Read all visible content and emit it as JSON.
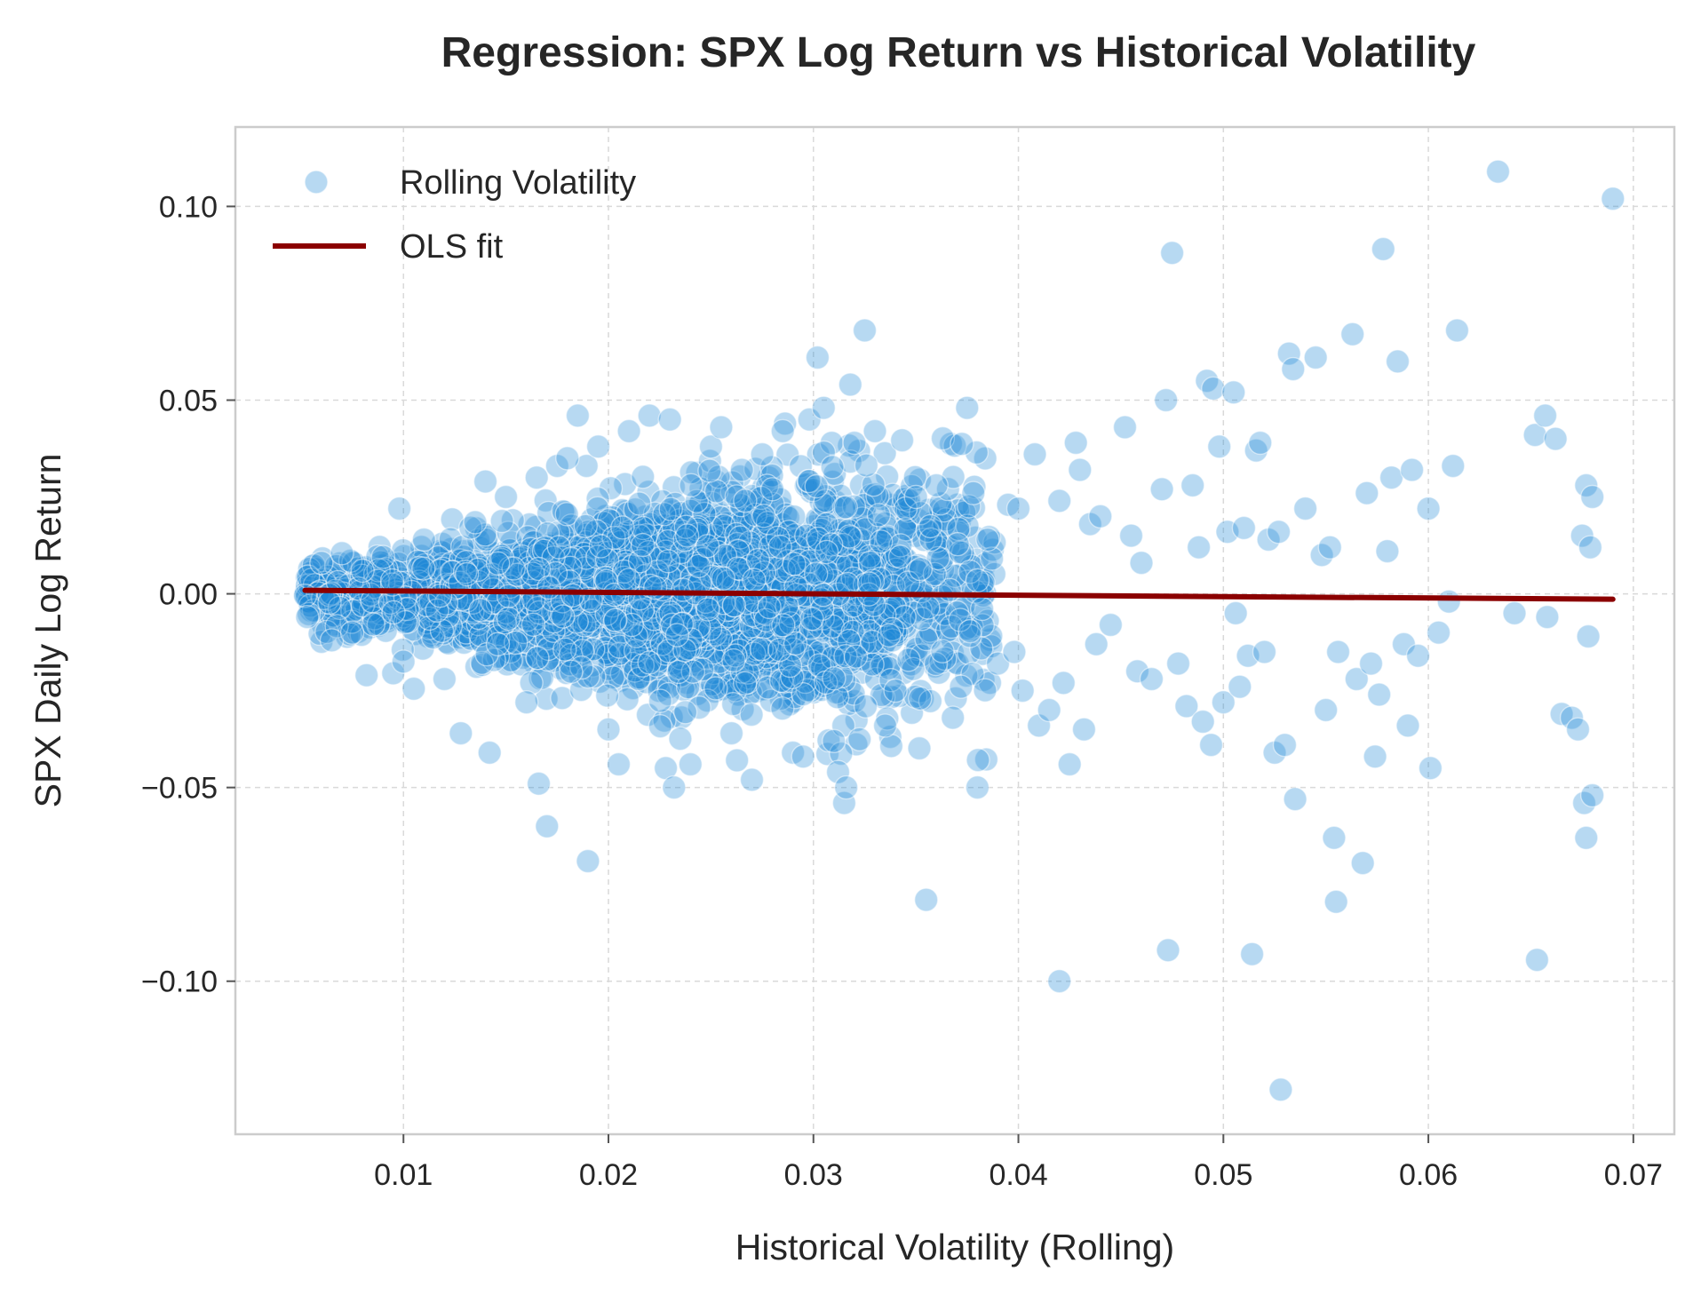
{
  "chart_data": {
    "type": "scatter",
    "title": "Regression: SPX Log Return vs Historical Volatility",
    "xlabel": "Historical Volatility (Rolling)",
    "ylabel": "SPX Daily Log Return",
    "xlim": [
      0.0018,
      0.072
    ],
    "ylim": [
      -0.1395,
      0.1205
    ],
    "xticks": [
      0.01,
      0.02,
      0.03,
      0.04,
      0.05,
      0.06,
      0.07
    ],
    "xtick_labels": [
      "0.01",
      "0.02",
      "0.03",
      "0.04",
      "0.05",
      "0.06",
      "0.07"
    ],
    "yticks": [
      0.1,
      0.05,
      0.0,
      -0.05,
      -0.1
    ],
    "ytick_labels": [
      "0.10",
      "0.05",
      "0.00",
      "−0.05",
      "−0.10"
    ],
    "grid": true,
    "legend_position": "top-left",
    "legend": [
      {
        "label": "Rolling Volatility",
        "marker": "circle"
      },
      {
        "label": "OLS fit",
        "marker": "line"
      }
    ],
    "colors": {
      "points": "#1f8ad6",
      "fit": "#8b0000",
      "grid": "#d9d9d9",
      "spine": "#cccccc"
    },
    "series": [
      {
        "name": "Rolling Volatility",
        "type": "scatter",
        "points": [
          [
            0.0052,
            -0.0005
          ],
          [
            0.0053,
            -0.006
          ],
          [
            0.006,
            0.008
          ],
          [
            0.0065,
            -0.012
          ],
          [
            0.0068,
            0.003
          ],
          [
            0.007,
            0.0105
          ],
          [
            0.0075,
            -0.01
          ],
          [
            0.008,
            0.006
          ],
          [
            0.0082,
            -0.021
          ],
          [
            0.009,
            0.0095
          ],
          [
            0.0095,
            -0.0205
          ],
          [
            0.0098,
            0.022
          ],
          [
            0.01,
            -0.0175
          ],
          [
            0.0105,
            -0.0245
          ],
          [
            0.011,
            0.014
          ],
          [
            0.012,
            -0.022
          ],
          [
            0.0128,
            -0.036
          ],
          [
            0.0135,
            0.0185
          ],
          [
            0.014,
            0.029
          ],
          [
            0.0142,
            -0.041
          ],
          [
            0.015,
            0.025
          ],
          [
            0.016,
            -0.028
          ],
          [
            0.0165,
            0.03
          ],
          [
            0.0166,
            -0.049
          ],
          [
            0.017,
            -0.06
          ],
          [
            0.0175,
            0.033
          ],
          [
            0.018,
            0.035
          ],
          [
            0.0185,
            0.046
          ],
          [
            0.019,
            -0.069
          ],
          [
            0.0195,
            0.038
          ],
          [
            0.02,
            -0.035
          ],
          [
            0.0205,
            -0.044
          ],
          [
            0.021,
            0.042
          ],
          [
            0.022,
            0.046
          ],
          [
            0.023,
            0.045
          ],
          [
            0.0228,
            -0.045
          ],
          [
            0.0232,
            -0.05
          ],
          [
            0.024,
            -0.044
          ],
          [
            0.025,
            0.038
          ],
          [
            0.0255,
            0.043
          ],
          [
            0.026,
            -0.036
          ],
          [
            0.027,
            -0.048
          ],
          [
            0.0275,
            0.036
          ],
          [
            0.028,
            0.027
          ],
          [
            0.0285,
            0.042
          ],
          [
            0.029,
            -0.041
          ],
          [
            0.0295,
            -0.042
          ],
          [
            0.0298,
            0.045
          ],
          [
            0.0302,
            0.061
          ],
          [
            0.0305,
            0.048
          ],
          [
            0.031,
            -0.038
          ],
          [
            0.0312,
            -0.046
          ],
          [
            0.0315,
            -0.054
          ],
          [
            0.0316,
            -0.05
          ],
          [
            0.0318,
            0.054
          ],
          [
            0.032,
            0.039
          ],
          [
            0.0325,
            0.068
          ],
          [
            0.033,
            0.042
          ],
          [
            0.0335,
            -0.034
          ],
          [
            0.034,
            -0.025
          ],
          [
            0.0345,
            0.022
          ],
          [
            0.035,
            0.025
          ],
          [
            0.0352,
            -0.027
          ],
          [
            0.0355,
            -0.079
          ],
          [
            0.036,
            0.028
          ],
          [
            0.0368,
            -0.032
          ],
          [
            0.0372,
            -0.024
          ],
          [
            0.0375,
            0.048
          ],
          [
            0.0378,
            0.026
          ],
          [
            0.038,
            -0.05
          ],
          [
            0.0385,
            0.014
          ],
          [
            0.039,
            -0.018
          ],
          [
            0.0395,
            0.023
          ],
          [
            0.0398,
            -0.015
          ],
          [
            0.04,
            0.022
          ],
          [
            0.0402,
            -0.025
          ],
          [
            0.0408,
            0.036
          ],
          [
            0.041,
            -0.034
          ],
          [
            0.0415,
            -0.03
          ],
          [
            0.042,
            0.024
          ],
          [
            0.042,
            -0.1
          ],
          [
            0.0422,
            -0.023
          ],
          [
            0.0425,
            -0.044
          ],
          [
            0.0428,
            0.039
          ],
          [
            0.043,
            0.032
          ],
          [
            0.0432,
            -0.035
          ],
          [
            0.0435,
            0.018
          ],
          [
            0.0438,
            -0.013
          ],
          [
            0.044,
            0.02
          ],
          [
            0.0445,
            -0.008
          ],
          [
            0.0452,
            0.043
          ],
          [
            0.0455,
            0.015
          ],
          [
            0.0458,
            -0.02
          ],
          [
            0.046,
            0.008
          ],
          [
            0.0465,
            -0.022
          ],
          [
            0.047,
            0.027
          ],
          [
            0.0472,
            0.05
          ],
          [
            0.0473,
            -0.092
          ],
          [
            0.0475,
            0.088
          ],
          [
            0.0478,
            -0.018
          ],
          [
            0.0482,
            -0.029
          ],
          [
            0.0485,
            0.028
          ],
          [
            0.0488,
            0.012
          ],
          [
            0.049,
            -0.033
          ],
          [
            0.0492,
            0.055
          ],
          [
            0.0494,
            -0.039
          ],
          [
            0.0495,
            0.053
          ],
          [
            0.0498,
            0.038
          ],
          [
            0.05,
            -0.028
          ],
          [
            0.0502,
            0.016
          ],
          [
            0.0505,
            0.052
          ],
          [
            0.0506,
            -0.005
          ],
          [
            0.0508,
            -0.024
          ],
          [
            0.051,
            0.017
          ],
          [
            0.0512,
            -0.016
          ],
          [
            0.0514,
            -0.093
          ],
          [
            0.0516,
            0.037
          ],
          [
            0.0518,
            0.039
          ],
          [
            0.052,
            -0.015
          ],
          [
            0.0522,
            0.014
          ],
          [
            0.0525,
            -0.041
          ],
          [
            0.0527,
            0.016
          ],
          [
            0.0528,
            -0.128
          ],
          [
            0.053,
            -0.039
          ],
          [
            0.0532,
            0.062
          ],
          [
            0.0534,
            0.058
          ],
          [
            0.0535,
            -0.053
          ],
          [
            0.054,
            0.022
          ],
          [
            0.0545,
            0.061
          ],
          [
            0.0548,
            0.01
          ],
          [
            0.055,
            -0.03
          ],
          [
            0.0552,
            0.012
          ],
          [
            0.0554,
            -0.063
          ],
          [
            0.0555,
            -0.0795
          ],
          [
            0.0556,
            -0.015
          ],
          [
            0.0563,
            0.067
          ],
          [
            0.0565,
            -0.022
          ],
          [
            0.0568,
            -0.0695
          ],
          [
            0.057,
            0.026
          ],
          [
            0.0572,
            -0.018
          ],
          [
            0.0574,
            -0.042
          ],
          [
            0.0576,
            -0.026
          ],
          [
            0.0578,
            0.089
          ],
          [
            0.058,
            0.011
          ],
          [
            0.0582,
            0.03
          ],
          [
            0.0585,
            0.06
          ],
          [
            0.0588,
            -0.013
          ],
          [
            0.059,
            -0.034
          ],
          [
            0.0592,
            0.032
          ],
          [
            0.0595,
            -0.016
          ],
          [
            0.06,
            0.022
          ],
          [
            0.0601,
            -0.045
          ],
          [
            0.0605,
            -0.01
          ],
          [
            0.061,
            -0.002
          ],
          [
            0.0612,
            0.033
          ],
          [
            0.0614,
            0.068
          ],
          [
            0.0634,
            0.109
          ],
          [
            0.0642,
            -0.005
          ],
          [
            0.0652,
            0.041
          ],
          [
            0.0653,
            -0.0945
          ],
          [
            0.0657,
            0.046
          ],
          [
            0.0658,
            -0.006
          ],
          [
            0.0662,
            0.04
          ],
          [
            0.0665,
            -0.031
          ],
          [
            0.067,
            -0.032
          ],
          [
            0.0673,
            -0.035
          ],
          [
            0.0675,
            0.015
          ],
          [
            0.0676,
            -0.054
          ],
          [
            0.0677,
            -0.063
          ],
          [
            0.0677,
            0.028
          ],
          [
            0.0678,
            -0.011
          ],
          [
            0.0679,
            0.012
          ],
          [
            0.068,
            -0.052
          ],
          [
            0.068,
            0.025
          ],
          [
            0.069,
            0.102
          ]
        ],
        "dense_cloud": {
          "n": 3400,
          "x_range": [
            0.0052,
            0.039
          ],
          "center_x": 0.025,
          "note": "Dense cluster of observations; spread of returns widens with volatility up to about ±0.025"
        }
      },
      {
        "name": "OLS fit",
        "type": "line",
        "x": [
          0.0052,
          0.069
        ],
        "y": [
          0.0009,
          -0.0014
        ]
      }
    ]
  }
}
